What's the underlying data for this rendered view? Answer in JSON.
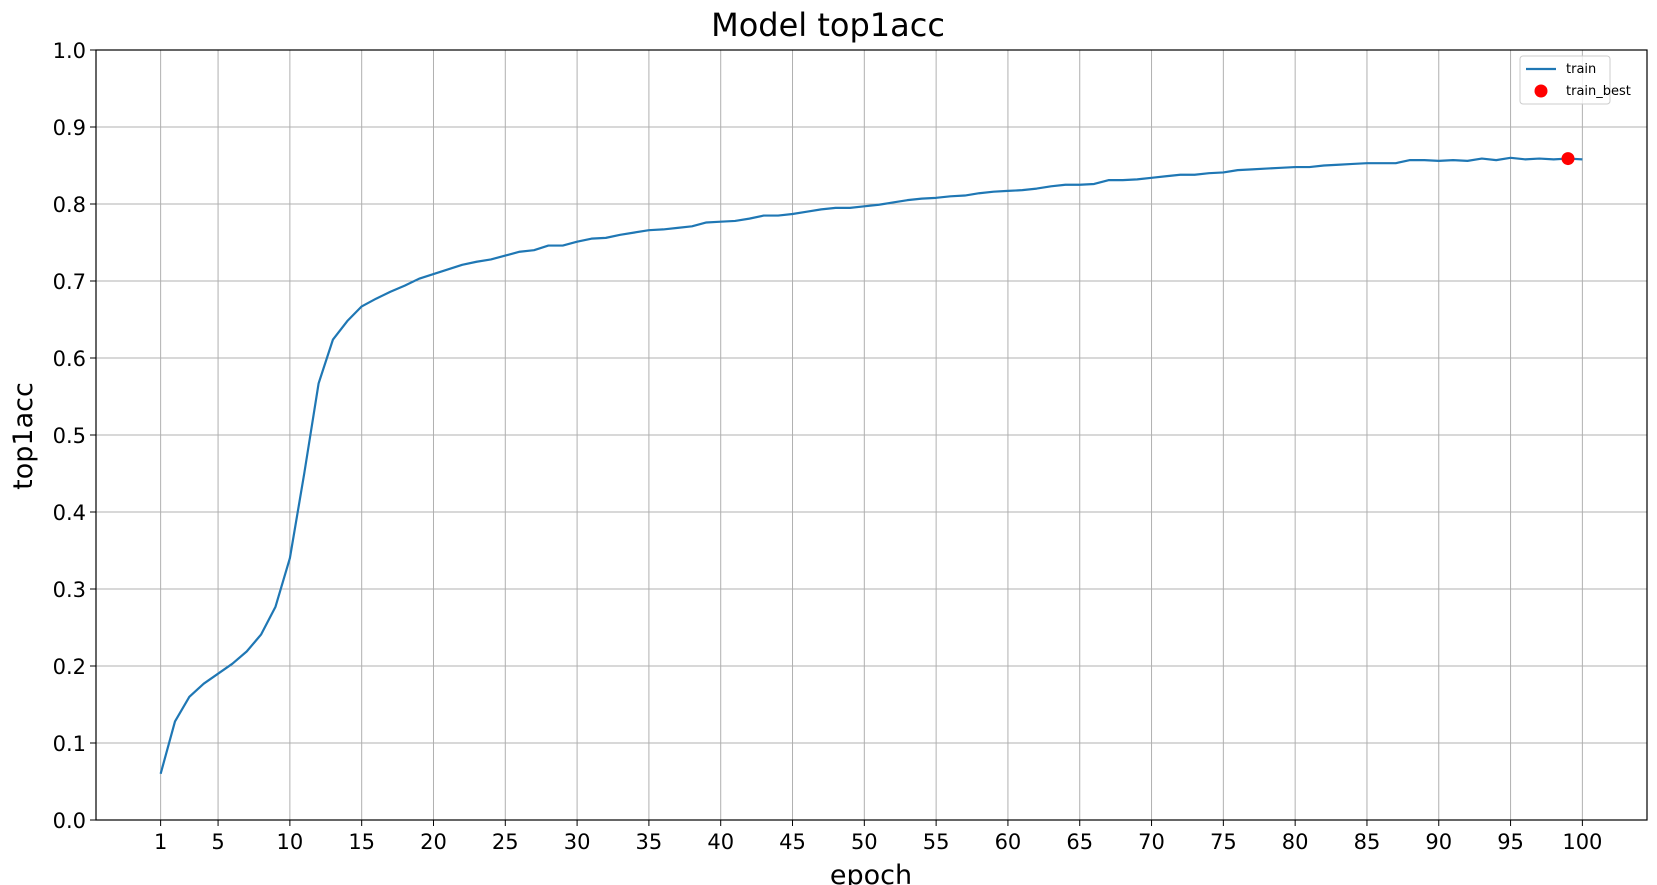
{
  "chart_data": {
    "type": "line",
    "title": "Model top1acc",
    "xlabel": "epoch",
    "ylabel": "top1acc",
    "xlim": [
      -3.5,
      104.5
    ],
    "ylim": [
      0.0,
      1.0
    ],
    "xticks": [
      1,
      5,
      10,
      15,
      20,
      25,
      30,
      35,
      40,
      45,
      50,
      55,
      60,
      65,
      70,
      75,
      80,
      85,
      90,
      95,
      100
    ],
    "xtick_labels": [
      "1",
      "5",
      "10",
      "15",
      "20",
      "25",
      "30",
      "35",
      "40",
      "45",
      "50",
      "55",
      "60",
      "65",
      "70",
      "75",
      "80",
      "85",
      "90",
      "95",
      "100"
    ],
    "yticks": [
      0.0,
      0.1,
      0.2,
      0.3,
      0.4,
      0.5,
      0.6,
      0.7,
      0.8,
      0.9,
      1.0
    ],
    "ytick_labels": [
      "0.0",
      "0.1",
      "0.2",
      "0.3",
      "0.4",
      "0.5",
      "0.6",
      "0.7",
      "0.8",
      "0.9",
      "1.0"
    ],
    "grid": true,
    "legend_position": "top-right",
    "colors": {
      "train": "#1f77b4",
      "train_best": "#ff0000"
    },
    "series": [
      {
        "name": "train",
        "x": [
          1,
          2,
          3,
          4,
          5,
          6,
          7,
          8,
          9,
          10,
          11,
          12,
          13,
          14,
          15,
          16,
          17,
          18,
          19,
          20,
          21,
          22,
          23,
          24,
          25,
          26,
          27,
          28,
          29,
          30,
          31,
          32,
          33,
          34,
          35,
          36,
          37,
          38,
          39,
          40,
          41,
          42,
          43,
          44,
          45,
          46,
          47,
          48,
          49,
          50,
          51,
          52,
          53,
          54,
          55,
          56,
          57,
          58,
          59,
          60,
          61,
          62,
          63,
          64,
          65,
          66,
          67,
          68,
          69,
          70,
          71,
          72,
          73,
          74,
          75,
          76,
          77,
          78,
          79,
          80,
          81,
          82,
          83,
          84,
          85,
          86,
          87,
          88,
          89,
          90,
          91,
          92,
          93,
          94,
          95,
          96,
          97,
          98,
          99,
          100
        ],
        "y": [
          0.06,
          0.128,
          0.16,
          0.177,
          0.19,
          0.203,
          0.219,
          0.241,
          0.277,
          0.34,
          0.45,
          0.567,
          0.624,
          0.648,
          0.667,
          0.677,
          0.686,
          0.694,
          0.703,
          0.709,
          0.715,
          0.721,
          0.725,
          0.728,
          0.733,
          0.738,
          0.74,
          0.746,
          0.746,
          0.751,
          0.755,
          0.756,
          0.76,
          0.763,
          0.766,
          0.767,
          0.769,
          0.771,
          0.776,
          0.777,
          0.778,
          0.781,
          0.785,
          0.785,
          0.787,
          0.79,
          0.793,
          0.795,
          0.795,
          0.797,
          0.799,
          0.802,
          0.805,
          0.807,
          0.808,
          0.81,
          0.811,
          0.814,
          0.816,
          0.817,
          0.818,
          0.82,
          0.823,
          0.825,
          0.825,
          0.826,
          0.831,
          0.831,
          0.832,
          0.834,
          0.836,
          0.838,
          0.838,
          0.84,
          0.841,
          0.844,
          0.845,
          0.846,
          0.847,
          0.848,
          0.848,
          0.85,
          0.851,
          0.852,
          0.853,
          0.853,
          0.853,
          0.857,
          0.857,
          0.856,
          0.857,
          0.856,
          0.859,
          0.857,
          0.86,
          0.858,
          0.859,
          0.858,
          0.859,
          0.858
        ]
      },
      {
        "name": "train_best",
        "type": "scatter",
        "x": [
          99
        ],
        "y": [
          0.859
        ]
      }
    ]
  }
}
